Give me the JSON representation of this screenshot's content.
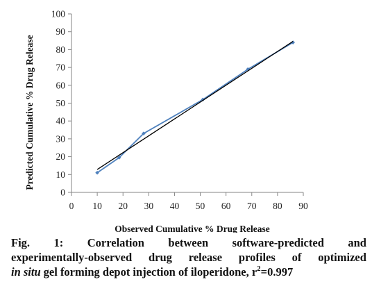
{
  "chart_data": {
    "type": "scatter",
    "xlabel": "Observed Cumulative % Drug Release",
    "ylabel": "Predicted Cumulative % Drug Release",
    "xlim": [
      0,
      90
    ],
    "ylim": [
      0,
      100
    ],
    "x_ticks": [
      0,
      10,
      20,
      30,
      40,
      50,
      60,
      70,
      80,
      90
    ],
    "y_ticks": [
      0,
      10,
      20,
      30,
      40,
      50,
      60,
      70,
      80,
      90,
      100
    ],
    "grid": false,
    "series": [
      {
        "style": "line with markers",
        "color": "#4f81bd",
        "x": [
          10,
          18.5,
          28,
          51,
          68.5,
          86
        ],
        "y": [
          11,
          19.5,
          33,
          52,
          69,
          84
        ]
      }
    ],
    "trendline": {
      "color": "#000000",
      "x": [
        10,
        86
      ],
      "y": [
        12.8,
        84.6
      ]
    }
  },
  "caption": {
    "line1": [
      "Fig.",
      "1:",
      "Correlation",
      "between",
      "software-predicted",
      "and"
    ],
    "line2": [
      "experimentally-observed",
      "drug",
      "release",
      "profiles",
      "of",
      "optimized"
    ],
    "line3": {
      "italic": "in situ",
      "text": "gel forming depot injection of iloperidone, r",
      "sup": "2",
      "value": "=0.997"
    }
  }
}
